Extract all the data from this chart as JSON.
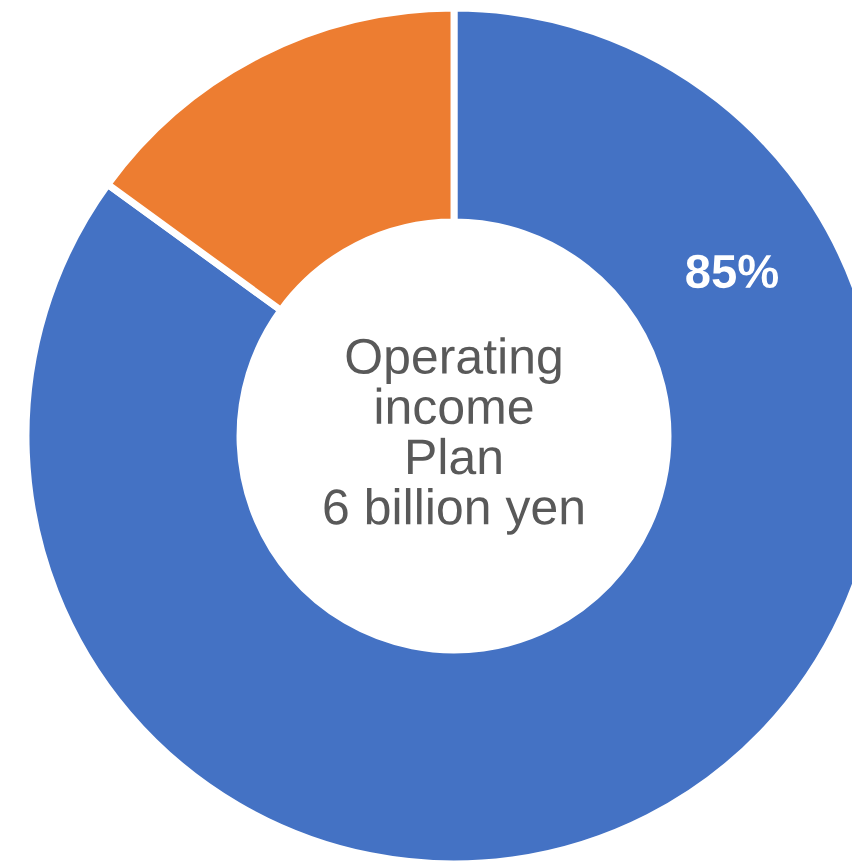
{
  "chart_data": {
    "type": "donut",
    "categories": [
      null,
      null
    ],
    "values": [
      85,
      15
    ],
    "colors": [
      "#4472c4",
      "#ed7d31"
    ],
    "value_labels": [
      "85%",
      null
    ],
    "annotations": [
      "Operating\nincome\nPlan\n6 billion yen"
    ]
  }
}
